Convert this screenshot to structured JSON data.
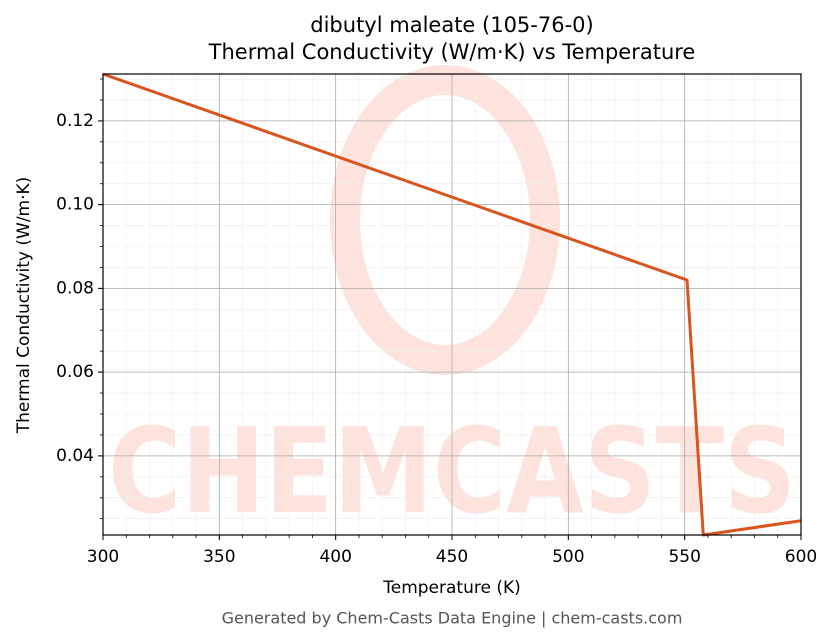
{
  "chart_data": {
    "type": "line",
    "title": "dibutyl maleate (105-76-0)",
    "subtitle": "Thermal Conductivity (W/m·K) vs Temperature",
    "x_label": "Temperature (K)",
    "y_label": "Thermal Conductivity (W/m·K)",
    "watermark": "CHEMCASTS",
    "footer": "Generated by Chem-Casts Data Engine | chem-casts.com",
    "x": [
      300,
      551,
      558,
      600
    ],
    "series": [
      {
        "name": "Thermal Conductivity",
        "color": "#d9541e",
        "values": [
          0.1312,
          0.082,
          0.0211,
          0.0245
        ]
      }
    ],
    "xlim": [
      300,
      600
    ],
    "xticks": [
      300,
      350,
      400,
      450,
      500,
      550,
      600
    ],
    "ylim": [
      0.0211,
      0.1312
    ],
    "yticks": [
      {
        "value": 0.04,
        "label": "0.04"
      },
      {
        "value": 0.06,
        "label": "0.06"
      },
      {
        "value": 0.08,
        "label": "0.08"
      },
      {
        "value": 0.1,
        "label": "0.10"
      },
      {
        "value": 0.12,
        "label": "0.12"
      }
    ],
    "grid": true
  }
}
